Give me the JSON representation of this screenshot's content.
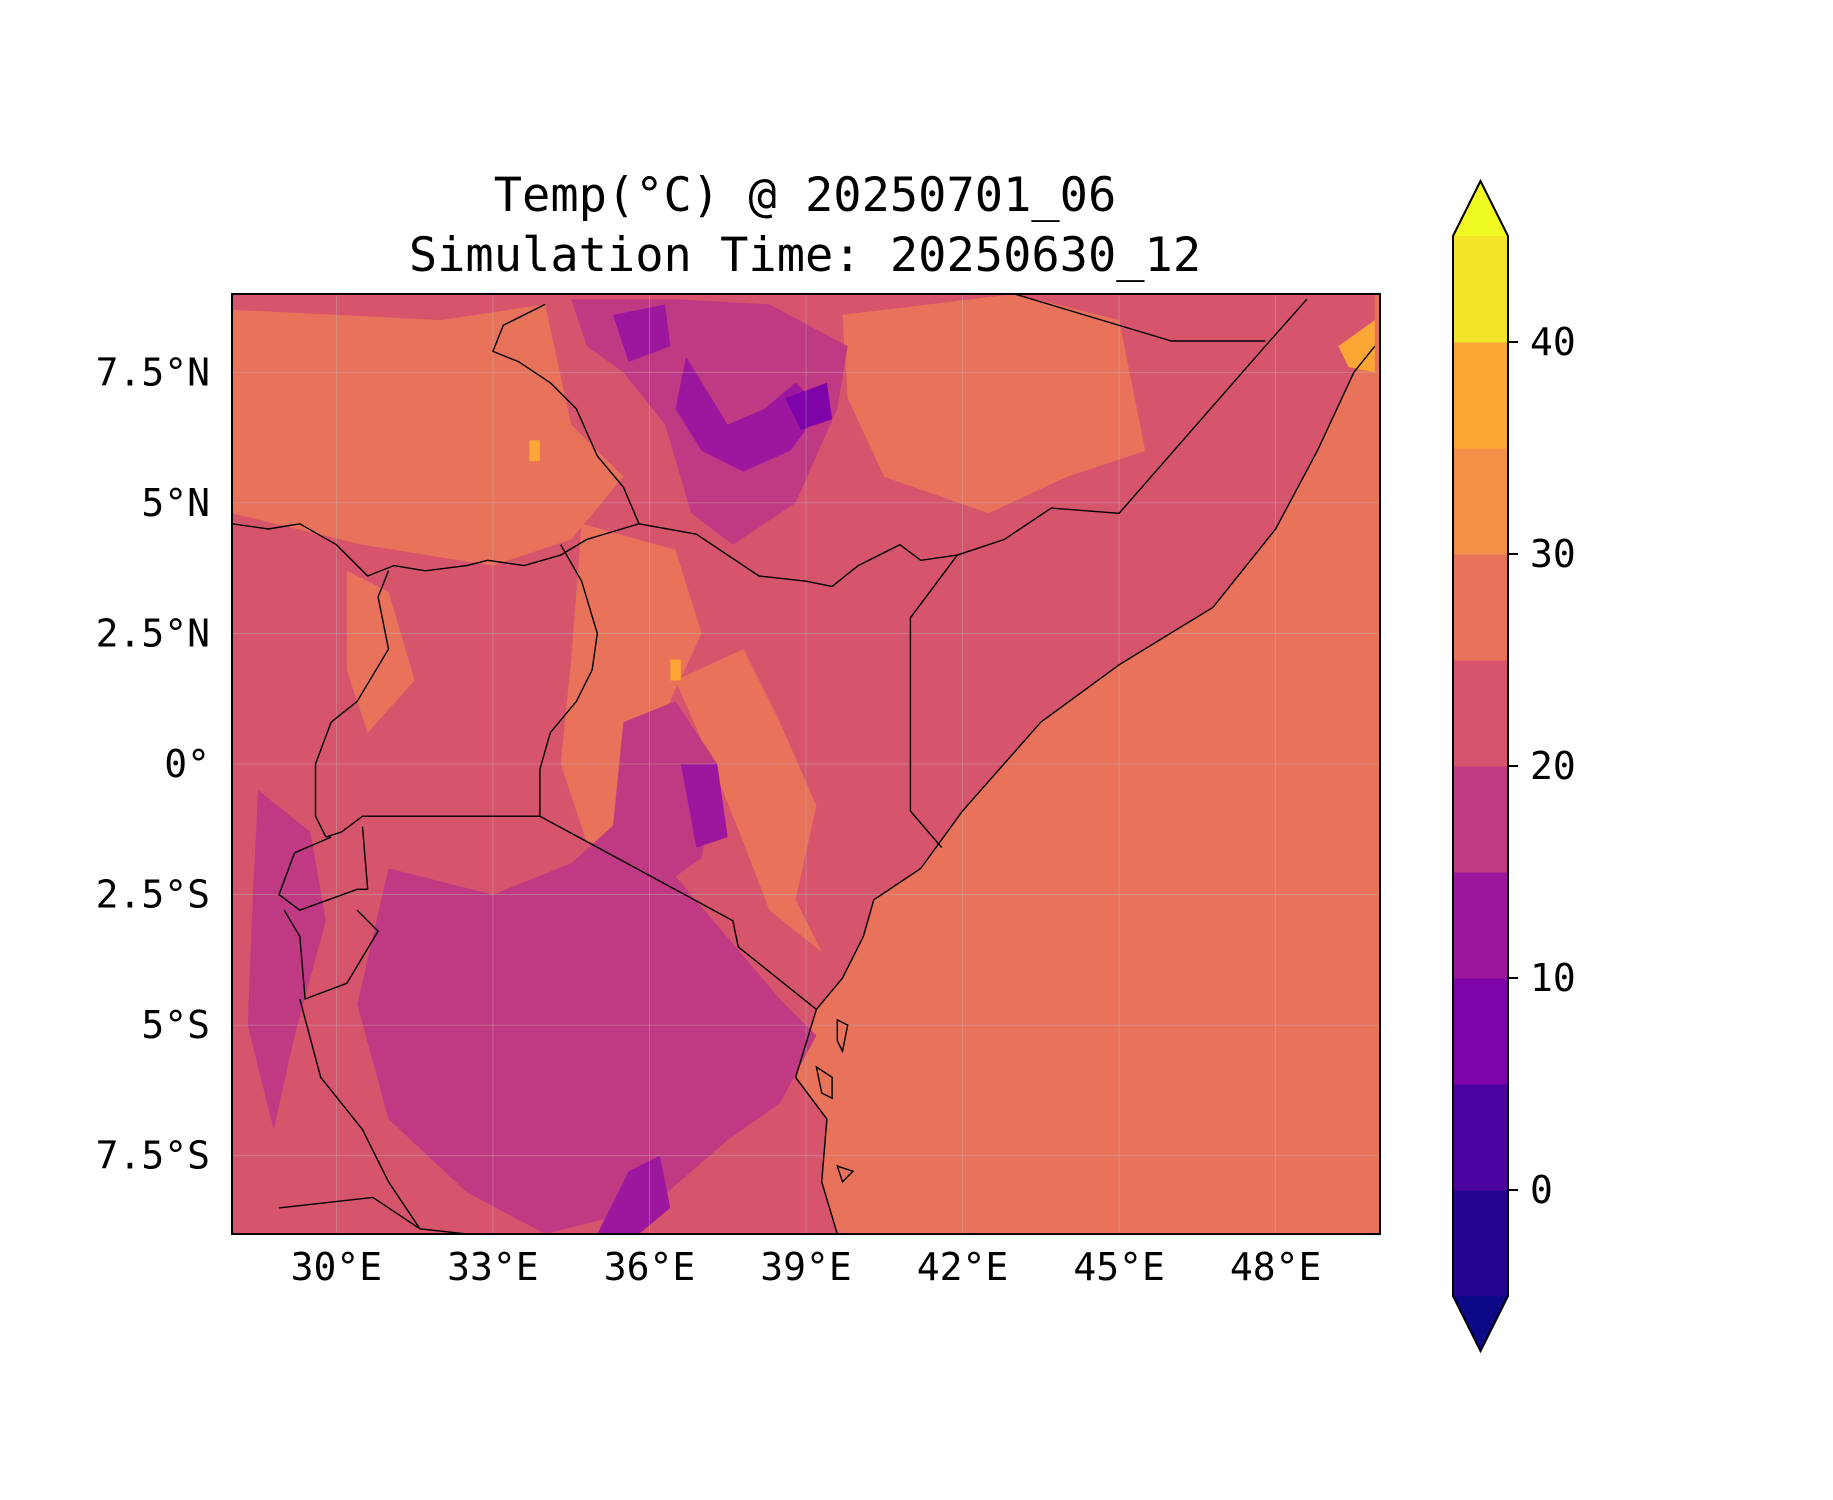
{
  "title": {
    "line1": "Temp(°C) @ 20250701_06",
    "line2": "Simulation Time: 20250630_12"
  },
  "map": {
    "extent": {
      "lon": [
        28.0,
        50.0
      ],
      "lat": [
        -9.0,
        9.0
      ]
    },
    "gridlines": true,
    "lon_ticks": [
      {
        "value": 30,
        "label": "30°E"
      },
      {
        "value": 33,
        "label": "33°E"
      },
      {
        "value": 36,
        "label": "36°E"
      },
      {
        "value": 39,
        "label": "39°E"
      },
      {
        "value": 42,
        "label": "42°E"
      },
      {
        "value": 45,
        "label": "45°E"
      },
      {
        "value": 48,
        "label": "48°E"
      }
    ],
    "lat_ticks": [
      {
        "value": 7.5,
        "label": "7.5°N"
      },
      {
        "value": 5,
        "label": "5°N"
      },
      {
        "value": 2.5,
        "label": "2.5°N"
      },
      {
        "value": 0,
        "label": "0°"
      },
      {
        "value": -2.5,
        "label": "2.5°S"
      },
      {
        "value": -5,
        "label": "5°S"
      },
      {
        "value": -7.5,
        "label": "7.5°S"
      }
    ],
    "base_fill": "#e8735a",
    "land_fill": "#d6556d",
    "regions": [
      {
        "level": 25,
        "color": "#e8735a",
        "points": [
          [
            28,
            8.7
          ],
          [
            32,
            8.5
          ],
          [
            34,
            8.8
          ],
          [
            34.5,
            6.5
          ],
          [
            35.5,
            5.5
          ],
          [
            34.5,
            4.3
          ],
          [
            33,
            3.8
          ],
          [
            30.5,
            4.2
          ],
          [
            28,
            4.8
          ]
        ]
      },
      {
        "level": 25,
        "color": "#e8735a",
        "points": [
          [
            34.7,
            4.6
          ],
          [
            36.5,
            4.1
          ],
          [
            37,
            2.5
          ],
          [
            36.3,
            1.0
          ],
          [
            35.8,
            -0.5
          ],
          [
            35.5,
            -1.5
          ],
          [
            34.8,
            -1.5
          ],
          [
            34.3,
            0.0
          ],
          [
            34.5,
            2.0
          ]
        ]
      },
      {
        "level": 25,
        "color": "#e8735a",
        "points": [
          [
            36.5,
            1.6
          ],
          [
            37.8,
            2.2
          ],
          [
            38.5,
            0.8
          ],
          [
            39.2,
            -0.8
          ],
          [
            38.8,
            -2.6
          ],
          [
            39.3,
            -3.6
          ],
          [
            38.3,
            -2.8
          ],
          [
            37.8,
            -1.5
          ],
          [
            37.2,
            0.0
          ]
        ]
      },
      {
        "level": 25,
        "color": "#e8735a",
        "points": [
          [
            39.7,
            8.6
          ],
          [
            43,
            9.0
          ],
          [
            45,
            8.5
          ],
          [
            45.5,
            6.0
          ],
          [
            44,
            5.5
          ],
          [
            42.5,
            4.8
          ],
          [
            40.5,
            5.5
          ],
          [
            39.8,
            7.0
          ]
        ]
      },
      {
        "level": 25,
        "color": "#e8735a",
        "points": [
          [
            30.2,
            3.7
          ],
          [
            31.0,
            3.3
          ],
          [
            31.5,
            1.6
          ],
          [
            30.6,
            0.6
          ],
          [
            30.2,
            1.8
          ]
        ]
      },
      {
        "level": 15,
        "color": "#c03a83",
        "points": [
          [
            34.5,
            8.9
          ],
          [
            36.5,
            8.9
          ],
          [
            38.3,
            8.8
          ],
          [
            39.8,
            8.0
          ],
          [
            39.6,
            6.8
          ],
          [
            38.8,
            5.0
          ],
          [
            37.6,
            4.2
          ],
          [
            36.8,
            4.8
          ],
          [
            36.3,
            6.5
          ],
          [
            35.5,
            7.5
          ],
          [
            34.8,
            8.0
          ]
        ]
      },
      {
        "level": 15,
        "color": "#c03a83",
        "points": [
          [
            31.0,
            -2.0
          ],
          [
            33.0,
            -2.5
          ],
          [
            34.5,
            -1.9
          ],
          [
            35.5,
            -1.0
          ],
          [
            36.8,
            -2.5
          ],
          [
            38.5,
            -4.5
          ],
          [
            39.2,
            -5.2
          ],
          [
            38.5,
            -6.5
          ],
          [
            37.5,
            -7.2
          ],
          [
            36.0,
            -8.5
          ],
          [
            34.0,
            -9.0
          ],
          [
            32.5,
            -8.2
          ],
          [
            31.0,
            -6.8
          ],
          [
            30.4,
            -4.6
          ]
        ]
      },
      {
        "level": 15,
        "color": "#c03a83",
        "points": [
          [
            35.5,
            0.8
          ],
          [
            36.5,
            1.2
          ],
          [
            37.3,
            0.0
          ],
          [
            37.0,
            -1.8
          ],
          [
            36.0,
            -2.5
          ],
          [
            35.3,
            -1.2
          ]
        ]
      },
      {
        "level": 15,
        "color": "#c03a83",
        "points": [
          [
            28.5,
            -0.5
          ],
          [
            29.5,
            -1.3
          ],
          [
            29.8,
            -3.0
          ],
          [
            29.2,
            -5.2
          ],
          [
            28.8,
            -7.0
          ],
          [
            28.3,
            -5.0
          ],
          [
            28.4,
            -2.5
          ]
        ]
      },
      {
        "level": 10,
        "color": "#9c179e",
        "points": [
          [
            36.7,
            7.8
          ],
          [
            37.5,
            6.5
          ],
          [
            38.2,
            6.8
          ],
          [
            38.8,
            7.3
          ],
          [
            39.3,
            6.8
          ],
          [
            38.7,
            6.0
          ],
          [
            37.8,
            5.6
          ],
          [
            37.0,
            6.0
          ],
          [
            36.5,
            6.8
          ]
        ]
      },
      {
        "level": 10,
        "color": "#9c179e",
        "points": [
          [
            35.3,
            8.6
          ],
          [
            36.3,
            8.8
          ],
          [
            36.4,
            8.0
          ],
          [
            35.6,
            7.7
          ]
        ]
      },
      {
        "level": 10,
        "color": "#9c179e",
        "points": [
          [
            36.6,
            0.0
          ],
          [
            37.3,
            0.0
          ],
          [
            37.5,
            -1.4
          ],
          [
            36.9,
            -1.6
          ]
        ]
      },
      {
        "level": 10,
        "color": "#9c179e",
        "points": [
          [
            35.6,
            -7.8
          ],
          [
            36.2,
            -7.5
          ],
          [
            36.4,
            -8.5
          ],
          [
            35.8,
            -9.0
          ],
          [
            35.0,
            -9.0
          ]
        ]
      },
      {
        "level": 5,
        "color": "#7e03a8",
        "points": [
          [
            38.6,
            7.0
          ],
          [
            39.4,
            7.3
          ],
          [
            39.5,
            6.6
          ],
          [
            38.9,
            6.4
          ]
        ]
      },
      {
        "level": 35,
        "color": "#fca636",
        "points": [
          [
            49.2,
            8.0
          ],
          [
            49.9,
            8.5
          ],
          [
            49.9,
            7.5
          ],
          [
            49.4,
            7.6
          ]
        ]
      },
      {
        "level": 35,
        "color": "#fca636",
        "points": [
          [
            33.7,
            6.2
          ],
          [
            33.9,
            6.2
          ],
          [
            33.9,
            5.8
          ],
          [
            33.7,
            5.8
          ]
        ]
      },
      {
        "level": 35,
        "color": "#fca636",
        "points": [
          [
            36.4,
            2.0
          ],
          [
            36.6,
            2.0
          ],
          [
            36.6,
            1.6
          ],
          [
            36.4,
            1.6
          ]
        ]
      }
    ],
    "borders": [
      {
        "name": "South Sudan - Ethiopia",
        "points": [
          [
            34.0,
            8.8
          ],
          [
            33.2,
            8.4
          ],
          [
            33.0,
            7.9
          ],
          [
            33.5,
            7.7
          ],
          [
            34.1,
            7.3
          ],
          [
            34.6,
            6.8
          ],
          [
            35.0,
            5.9
          ],
          [
            35.5,
            5.3
          ],
          [
            35.8,
            4.6
          ]
        ]
      },
      {
        "name": "South Sudan - Uganda/DRC",
        "points": [
          [
            35.8,
            4.6
          ],
          [
            34.8,
            4.3
          ],
          [
            34.3,
            4.0
          ],
          [
            33.6,
            3.8
          ],
          [
            32.9,
            3.9
          ],
          [
            32.5,
            3.8
          ],
          [
            31.7,
            3.7
          ],
          [
            31.1,
            3.8
          ],
          [
            30.6,
            3.6
          ],
          [
            30.0,
            4.2
          ],
          [
            29.3,
            4.6
          ],
          [
            28.7,
            4.5
          ],
          [
            28.0,
            4.6
          ]
        ]
      },
      {
        "name": "Uganda - Kenya",
        "points": [
          [
            34.3,
            4.2
          ],
          [
            34.7,
            3.5
          ],
          [
            35.0,
            2.5
          ],
          [
            34.9,
            1.8
          ],
          [
            34.6,
            1.2
          ],
          [
            34.1,
            0.6
          ],
          [
            33.9,
            -0.1
          ],
          [
            33.9,
            -1.0
          ]
        ]
      },
      {
        "name": "Uganda - DRC",
        "points": [
          [
            31.0,
            3.7
          ],
          [
            30.8,
            3.2
          ],
          [
            31.0,
            2.2
          ],
          [
            30.4,
            1.2
          ],
          [
            29.9,
            0.8
          ],
          [
            29.6,
            0.0
          ],
          [
            29.6,
            -1.0
          ],
          [
            29.8,
            -1.4
          ]
        ]
      },
      {
        "name": "Uganda/Rwanda - Tanzania",
        "points": [
          [
            33.9,
            -1.0
          ],
          [
            30.5,
            -1.0
          ],
          [
            30.1,
            -1.3
          ],
          [
            29.8,
            -1.4
          ]
        ]
      },
      {
        "name": "Rwanda/Burundi",
        "points": [
          [
            29.9,
            -1.4
          ],
          [
            29.2,
            -1.7
          ],
          [
            28.9,
            -2.5
          ],
          [
            29.3,
            -2.8
          ],
          [
            30.4,
            -2.4
          ],
          [
            30.6,
            -2.4
          ],
          [
            30.5,
            -1.2
          ]
        ]
      },
      {
        "name": "Burundi - Tanzania",
        "points": [
          [
            30.4,
            -2.8
          ],
          [
            30.8,
            -3.2
          ],
          [
            30.2,
            -4.2
          ],
          [
            29.4,
            -4.5
          ],
          [
            29.3,
            -3.3
          ],
          [
            29.0,
            -2.8
          ]
        ]
      },
      {
        "name": "Tanzania - DRC (Lake Tanganyika)",
        "points": [
          [
            29.3,
            -4.5
          ],
          [
            29.7,
            -6.0
          ],
          [
            30.5,
            -7.0
          ],
          [
            31.0,
            -8.0
          ],
          [
            31.6,
            -8.9
          ]
        ]
      },
      {
        "name": "Zambia - Tanzania",
        "points": [
          [
            28.9,
            -8.5
          ],
          [
            30.7,
            -8.3
          ],
          [
            31.6,
            -8.9
          ],
          [
            32.5,
            -9.0
          ]
        ]
      },
      {
        "name": "Kenya - Tanzania",
        "points": [
          [
            33.9,
            -1.0
          ],
          [
            37.6,
            -3.0
          ],
          [
            37.7,
            -3.5
          ],
          [
            39.2,
            -4.7
          ]
        ]
      },
      {
        "name": "Kenya - Ethiopia",
        "points": [
          [
            35.8,
            4.6
          ],
          [
            36.9,
            4.4
          ],
          [
            38.1,
            3.6
          ],
          [
            39.0,
            3.5
          ],
          [
            39.5,
            3.4
          ],
          [
            40.0,
            3.8
          ],
          [
            40.8,
            4.2
          ],
          [
            41.2,
            3.9
          ],
          [
            41.9,
            4.0
          ]
        ]
      },
      {
        "name": "Kenya - Somalia",
        "points": [
          [
            41.9,
            4.0
          ],
          [
            41.0,
            2.8
          ],
          [
            41.0,
            -0.9
          ],
          [
            41.6,
            -1.6
          ]
        ]
      },
      {
        "name": "Ethiopia - Somalia",
        "points": [
          [
            41.9,
            4.0
          ],
          [
            42.8,
            4.3
          ],
          [
            43.7,
            4.9
          ],
          [
            45.0,
            4.8
          ],
          [
            47.8,
            8.0
          ],
          [
            48.6,
            8.9
          ]
        ]
      },
      {
        "name": "Somaliland",
        "points": [
          [
            43.0,
            9.0
          ],
          [
            46.0,
            8.1
          ],
          [
            47.8,
            8.1
          ]
        ]
      },
      {
        "name": "East Africa coastline",
        "points": [
          [
            49.9,
            8.0
          ],
          [
            49.5,
            7.5
          ],
          [
            48.8,
            6.0
          ],
          [
            48.0,
            4.5
          ],
          [
            46.8,
            3.0
          ],
          [
            45.0,
            1.9
          ],
          [
            43.5,
            0.8
          ],
          [
            42.0,
            -0.9
          ],
          [
            41.2,
            -2.0
          ],
          [
            40.3,
            -2.6
          ],
          [
            40.1,
            -3.3
          ],
          [
            39.7,
            -4.1
          ],
          [
            39.2,
            -4.7
          ],
          [
            38.8,
            -6.0
          ],
          [
            39.4,
            -6.8
          ],
          [
            39.3,
            -8.0
          ],
          [
            39.6,
            -9.0
          ]
        ]
      }
    ],
    "islands": [
      {
        "name": "Pemba",
        "points": [
          [
            39.6,
            -4.9
          ],
          [
            39.8,
            -5.0
          ],
          [
            39.7,
            -5.5
          ],
          [
            39.6,
            -5.3
          ]
        ]
      },
      {
        "name": "Zanzibar",
        "points": [
          [
            39.2,
            -5.8
          ],
          [
            39.5,
            -6.0
          ],
          [
            39.5,
            -6.4
          ],
          [
            39.3,
            -6.3
          ]
        ]
      },
      {
        "name": "Mafia",
        "points": [
          [
            39.6,
            -7.7
          ],
          [
            39.9,
            -7.8
          ],
          [
            39.7,
            -8.0
          ]
        ]
      }
    ]
  },
  "colorbar": {
    "levels": [
      -5,
      0,
      5,
      10,
      15,
      20,
      25,
      30,
      35,
      40,
      45
    ],
    "colors": [
      "#240691",
      "#4c02a1",
      "#7e03a8",
      "#9c179e",
      "#c03a83",
      "#d6556d",
      "#e8735a",
      "#f48f45",
      "#fca636",
      "#f2e428"
    ],
    "extend_min_color": "#0d0887",
    "extend_max_color": "#f0f921",
    "ticks": [
      {
        "value": 0,
        "label": "0"
      },
      {
        "value": 10,
        "label": "10"
      },
      {
        "value": 20,
        "label": "20"
      },
      {
        "value": 30,
        "label": "30"
      },
      {
        "value": 40,
        "label": "40"
      }
    ]
  }
}
